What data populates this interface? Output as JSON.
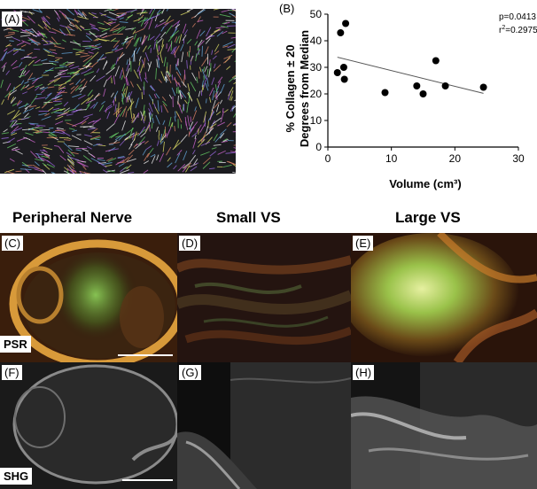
{
  "panels": {
    "a": "(A)",
    "b": "(B)",
    "c": "(C)",
    "d": "(D)",
    "e": "(E)",
    "f": "(F)",
    "g": "(G)",
    "h": "(H)"
  },
  "columns": {
    "nerve": "Peripheral Nerve",
    "small": "Small VS",
    "large": "Large VS"
  },
  "stains": {
    "psr": "PSR",
    "shg": "SHG"
  },
  "chart_data": {
    "type": "scatter",
    "xlabel": "Volume (cm³)",
    "ylabel_line1": "% Collagen ± 20",
    "ylabel_line2": "Degrees from Median",
    "xlim": [
      0,
      30
    ],
    "ylim": [
      0,
      50
    ],
    "xticks": [
      0,
      10,
      20,
      30
    ],
    "yticks": [
      0,
      10,
      20,
      30,
      40,
      50
    ],
    "points": [
      {
        "x": 1.5,
        "y": 28
      },
      {
        "x": 2.0,
        "y": 43
      },
      {
        "x": 2.5,
        "y": 30
      },
      {
        "x": 2.6,
        "y": 25.5
      },
      {
        "x": 2.8,
        "y": 46.5
      },
      {
        "x": 9.0,
        "y": 20.5
      },
      {
        "x": 14.0,
        "y": 23
      },
      {
        "x": 15.0,
        "y": 20
      },
      {
        "x": 17.0,
        "y": 32.5
      },
      {
        "x": 18.5,
        "y": 23
      },
      {
        "x": 24.5,
        "y": 22.5
      }
    ],
    "trendline": {
      "x0": 1.5,
      "y0": 33.8,
      "x1": 24.5,
      "y1": 20.2
    },
    "stats": {
      "p": "p=0.0413",
      "r2_prefix": "r",
      "r2_sup": "2",
      "r2_value": "=0.2975"
    },
    "grid": false,
    "colors": {
      "points": "#000000",
      "trendline": "#555555"
    }
  }
}
